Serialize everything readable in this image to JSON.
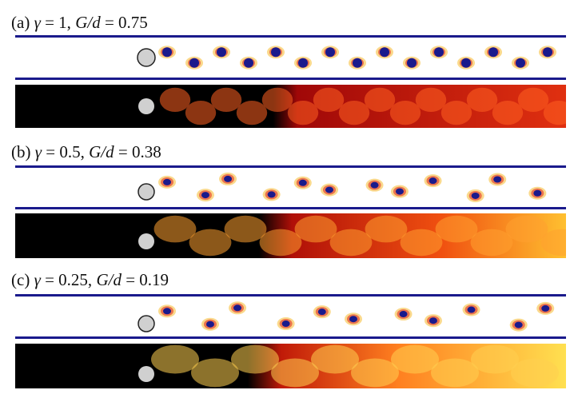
{
  "figure": {
    "panels": [
      {
        "id": "a",
        "label_prefix": "(a) ",
        "gamma_symbol": "γ",
        "gamma_eq": " = 1, ",
        "gap_symbol": "G/d",
        "gap_eq": " = 0.75"
      },
      {
        "id": "b",
        "label_prefix": "(b) ",
        "gamma_symbol": "γ",
        "gamma_eq": " = 0.5, ",
        "gap_symbol": "G/d",
        "gap_eq": " = 0.38"
      },
      {
        "id": "c",
        "label_prefix": "(c) ",
        "gamma_symbol": "γ",
        "gamma_eq": " = 0.25, ",
        "gap_symbol": "G/d",
        "gap_eq": " = 0.19"
      }
    ],
    "colors": {
      "vorticity_positive": "#1a1a8c",
      "vorticity_negative": "#e0201a",
      "vorticity_background": "#ffffff",
      "scalar_low": "#000000",
      "scalar_mid": "#c01010",
      "scalar_high": "#ffe040",
      "cylinder": "#d0d0d0",
      "wall": "#1a1a8c"
    }
  }
}
